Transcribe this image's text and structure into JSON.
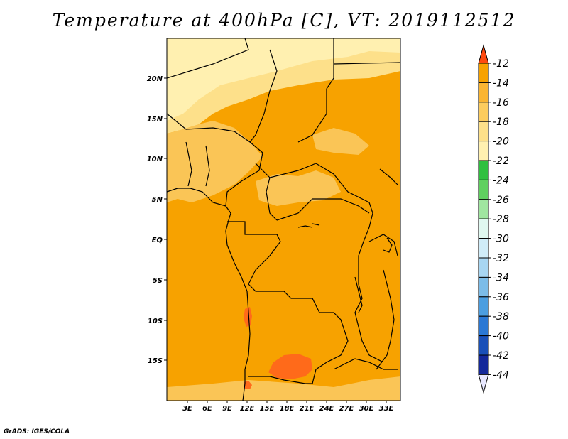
{
  "title": "Temperature at 400hPa [C], VT: 2019112512",
  "footer": "GrADS: IGES/COLA",
  "map": {
    "lat_ticks": [
      "20N",
      "15N",
      "10N",
      "5N",
      "EQ",
      "5S",
      "10S",
      "15S"
    ],
    "lon_ticks": [
      "3E",
      "6E",
      "9E",
      "12E",
      "15E",
      "18E",
      "21E",
      "24E",
      "27E",
      "30E",
      "33E"
    ],
    "colors": {
      "paler": "#fff0b0",
      "pale": "#fde08a",
      "light": "#fac556",
      "orange": "#f7a200",
      "dark": "#ff6a1a"
    }
  },
  "colorbar": {
    "labels": [
      "-12",
      "-14",
      "-16",
      "-18",
      "-20",
      "-22",
      "-24",
      "-26",
      "-28",
      "-30",
      "-32",
      "-34",
      "-36",
      "-38",
      "-40",
      "-42",
      "-44"
    ],
    "colors": [
      "#ff6a1a",
      "#f7a200",
      "#fab532",
      "#fccc5e",
      "#fde08a",
      "#fff0b0",
      "#30c040",
      "#60d060",
      "#a0e6a0",
      "#e0f8f0",
      "#d0ecf8",
      "#a8d6f2",
      "#7cbce8",
      "#4c9ee0",
      "#2b78d4",
      "#1a50b8",
      "#14289a",
      "#0a0a60"
    ],
    "top_arrow": "#ff4a10",
    "bottom_arrow": "#e8e8ff"
  }
}
